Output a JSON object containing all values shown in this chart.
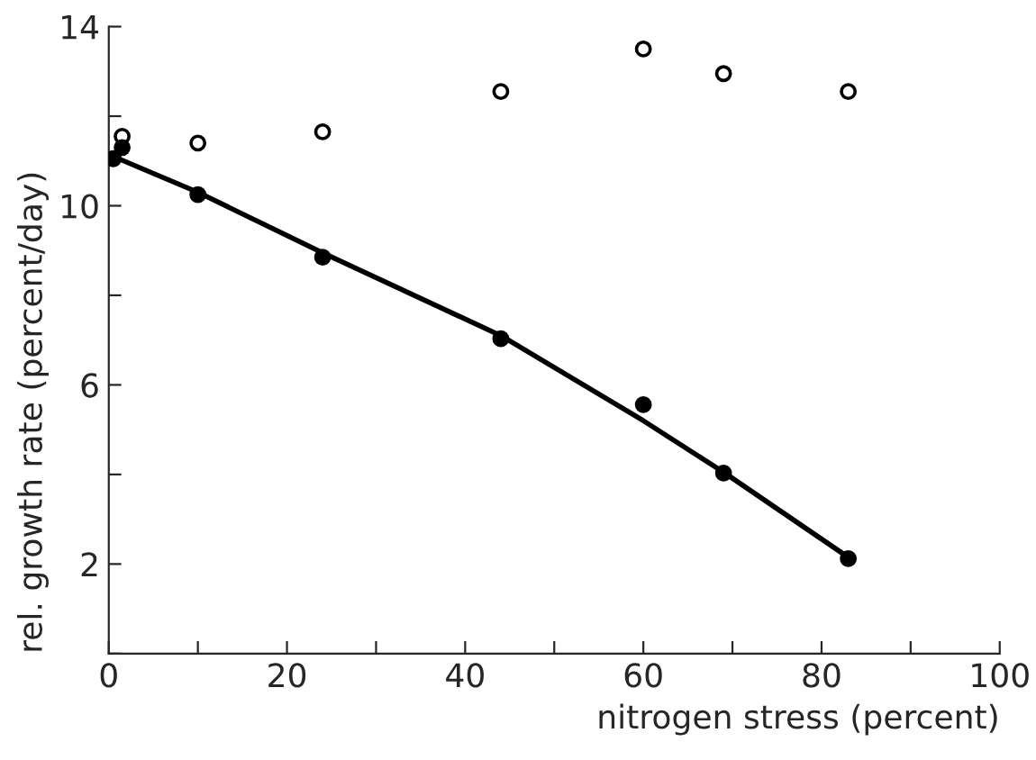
{
  "chart_data": {
    "type": "scatter",
    "xlabel": "nitrogen stress (percent)",
    "ylabel": "rel. growth rate (percent/day)",
    "xlim": [
      0,
      100
    ],
    "ylim": [
      0,
      14
    ],
    "xticks": [
      0,
      {
        "value": 10,
        "label": null
      },
      20,
      {
        "value": 30,
        "label": null
      },
      40,
      {
        "value": 50,
        "label": null
      },
      60,
      {
        "value": 70,
        "label": null
      },
      80,
      {
        "value": 90,
        "label": null
      },
      100
    ],
    "yticks": [
      {
        "value": 0,
        "label": null
      },
      2,
      {
        "value": 4,
        "label": null
      },
      6,
      {
        "value": 8,
        "label": null
      },
      10,
      {
        "value": 12,
        "label": null
      },
      14
    ],
    "grid": false,
    "legend": false,
    "series": [
      {
        "marker": "circle",
        "color": "#ffffff",
        "x": [
          1.5,
          10,
          24,
          44,
          60,
          69,
          83
        ],
        "values": [
          11.55,
          11.4,
          11.65,
          12.55,
          13.5,
          12.95,
          12.55
        ]
      },
      {
        "marker": "circle",
        "color": "#000000",
        "x": [
          0.5,
          1.5,
          10,
          24,
          44,
          60,
          69,
          83
        ],
        "values": [
          11.05,
          11.3,
          10.25,
          8.85,
          7.03,
          5.56,
          4.03,
          2.12
        ]
      },
      {
        "type": "line",
        "marker": "none",
        "line_style": "solid",
        "color": "#000000",
        "x": [
          0.5,
          10,
          24,
          44,
          60,
          69,
          83
        ],
        "values": [
          11.1,
          10.3,
          8.95,
          7.1,
          5.2,
          4.05,
          2.15
        ]
      }
    ]
  }
}
